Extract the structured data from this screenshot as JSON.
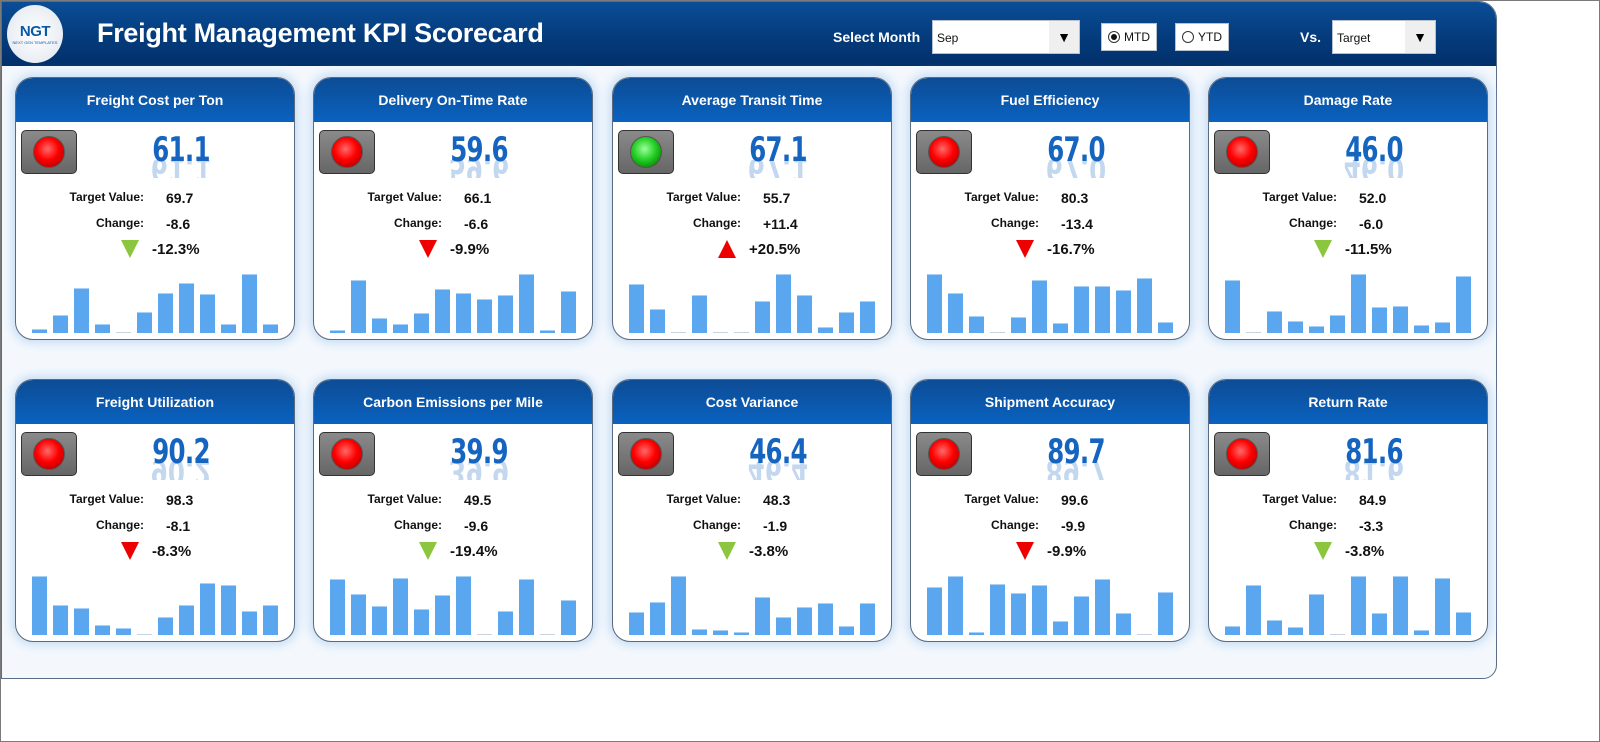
{
  "header": {
    "logo_text": "NGT",
    "logo_sub": "NEXT GEN TEMPLATES",
    "title": "Freight Management KPI Scorecard",
    "select_month_label": "Select Month",
    "month": "Sep",
    "mtd_label": "MTD",
    "ytd_label": "YTD",
    "mode_selected": "MTD",
    "vs_label": "Vs.",
    "vs_value": "Target"
  },
  "labels": {
    "target": "Target Value:",
    "change": "Change:"
  },
  "colors": {
    "good_arrow": "#8cc63f",
    "bad_arrow": "#ee0000",
    "bar": "#5aa6ef",
    "header": "#0a4d97"
  },
  "kpis": [
    {
      "name": "Freight Cost per Ton",
      "value": "61.1",
      "target": "69.7",
      "change": "-8.6",
      "pct": "-12.3%",
      "light": "red",
      "arrow": "down",
      "arrow_color": "green",
      "trend": [
        6,
        29,
        76,
        14,
        2,
        35,
        67,
        85,
        66,
        14,
        100,
        14
      ]
    },
    {
      "name": "Delivery On-Time Rate",
      "value": "59.6",
      "target": "66.1",
      "change": "-6.6",
      "pct": "-9.9%",
      "light": "red",
      "arrow": "down",
      "arrow_color": "red",
      "trend": [
        4,
        89,
        24,
        13,
        33,
        75,
        67,
        57,
        64,
        100,
        3,
        71
      ]
    },
    {
      "name": "Average Transit Time",
      "value": "67.1",
      "target": "55.7",
      "change": "+11.4",
      "pct": "+20.5%",
      "light": "green",
      "arrow": "up",
      "arrow_color": "red",
      "trend": [
        83,
        40,
        2,
        64,
        2,
        2,
        53,
        100,
        64,
        9,
        34,
        53
      ]
    },
    {
      "name": "Fuel Efficiency",
      "value": "67.0",
      "target": "80.3",
      "change": "-13.4",
      "pct": "-16.7%",
      "light": "red",
      "arrow": "down",
      "arrow_color": "red",
      "trend": [
        100,
        67,
        27,
        2,
        26,
        90,
        15,
        79,
        80,
        73,
        93,
        17
      ]
    },
    {
      "name": "Damage Rate",
      "value": "46.0",
      "target": "52.0",
      "change": "-6.0",
      "pct": "-11.5%",
      "light": "red",
      "arrow": "down",
      "arrow_color": "green",
      "trend": [
        90,
        1,
        37,
        19,
        11,
        30,
        100,
        43,
        45,
        12,
        17,
        96
      ]
    },
    {
      "name": "Freight Utilization",
      "value": "90.2",
      "target": "98.3",
      "change": "-8.1",
      "pct": "-8.3%",
      "light": "red",
      "arrow": "down",
      "arrow_color": "red",
      "trend": [
        100,
        50,
        45,
        16,
        11,
        0,
        29,
        50,
        88,
        84,
        39,
        50
      ]
    },
    {
      "name": "Carbon Emissions per Mile",
      "value": "39.9",
      "target": "49.5",
      "change": "-9.6",
      "pct": "-19.4%",
      "light": "red",
      "arrow": "down",
      "arrow_color": "green",
      "trend": [
        94,
        69,
        49,
        97,
        43,
        68,
        100,
        0,
        39,
        94,
        0,
        59
      ]
    },
    {
      "name": "Cost Variance",
      "value": "46.4",
      "target": "48.3",
      "change": "-1.9",
      "pct": "-3.8%",
      "light": "red",
      "arrow": "down",
      "arrow_color": "green",
      "trend": [
        38,
        55,
        100,
        9,
        7,
        3,
        64,
        29,
        47,
        53,
        14,
        53
      ]
    },
    {
      "name": "Shipment Accuracy",
      "value": "89.7",
      "target": "99.6",
      "change": "-9.9",
      "pct": "-9.9%",
      "light": "red",
      "arrow": "down",
      "arrow_color": "red",
      "trend": [
        81,
        100,
        3,
        87,
        71,
        85,
        23,
        65,
        94,
        37,
        0,
        72
      ]
    },
    {
      "name": "Return Rate",
      "value": "81.6",
      "target": "84.9",
      "change": "-3.3",
      "pct": "-3.8%",
      "light": "red",
      "arrow": "down",
      "arrow_color": "green",
      "trend": [
        13,
        84,
        25,
        12,
        69,
        2,
        100,
        36,
        100,
        7,
        96,
        38
      ]
    }
  ]
}
